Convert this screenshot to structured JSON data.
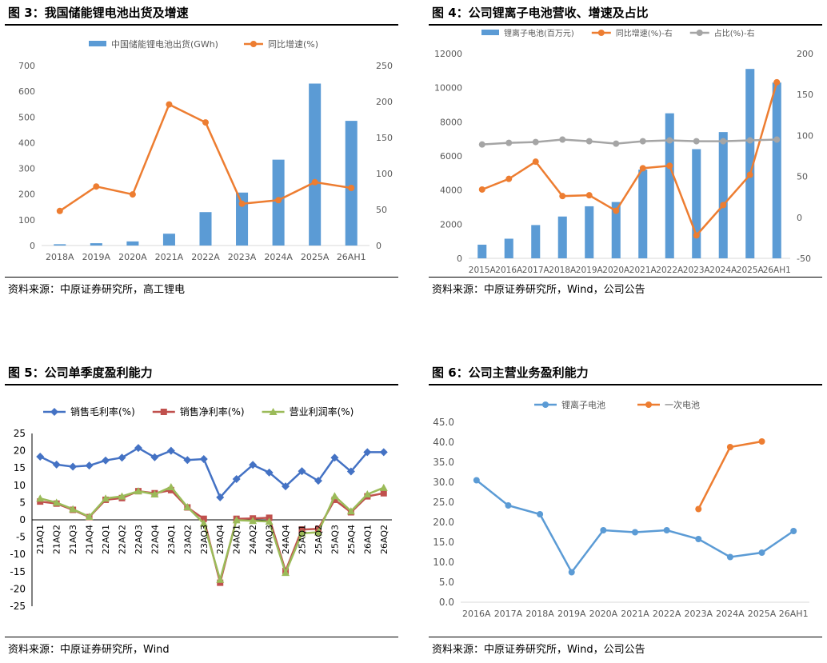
{
  "panels": [
    {
      "title": "图 3：我国储能锂电池出货及增速",
      "source": "资料来源：中原证券研究所，高工锂电",
      "chart_data": {
        "type": "bar+line",
        "categories": [
          "2018A",
          "2019A",
          "2020A",
          "2021A",
          "2022A",
          "2023A",
          "2024A",
          "2025A",
          "26AH1"
        ],
        "series": [
          {
            "name": "中国储能锂电池出货(GWh)",
            "kind": "bar",
            "axis": "left",
            "color": "#5b9bd5",
            "values": [
              5,
              9,
              16,
              46,
              130,
              206,
              334,
              630,
              485
            ]
          },
          {
            "name": "同比增速(%)",
            "kind": "line",
            "axis": "right",
            "color": "#ed7d31",
            "values": [
              48,
              82,
              71,
              196,
              171,
              58,
              63,
              88,
              80
            ]
          }
        ],
        "yleft": {
          "min": 0,
          "max": 700,
          "step": 100
        },
        "yright": {
          "min": 0,
          "max": 250,
          "step": 50
        },
        "legend": "top"
      }
    },
    {
      "title": "图 4：公司锂离子电池营收、增速及占比",
      "source": "资料来源：中原证券研究所，Wind，公司公告",
      "chart_data": {
        "type": "bar+line",
        "categories": [
          "2015A",
          "2016A",
          "2017A",
          "2018A",
          "2019A",
          "2020A",
          "2021A",
          "2022A",
          "2023A",
          "2024A",
          "2025A",
          "26AH1"
        ],
        "series": [
          {
            "name": "锂离子电池(百万元)",
            "kind": "bar",
            "axis": "left",
            "color": "#5b9bd5",
            "values": [
              800,
              1150,
              1950,
              2450,
              3050,
              3300,
              5200,
              8500,
              6400,
              7400,
              11100,
              10300
            ]
          },
          {
            "name": "同比增速(%)-右",
            "kind": "line",
            "axis": "right",
            "color": "#ed7d31",
            "values": [
              34,
              47,
              68,
              26,
              27,
              8,
              60,
              63,
              -22,
              15,
              52,
              165
            ]
          },
          {
            "name": "占比(%)-右",
            "kind": "line",
            "axis": "right",
            "color": "#a5a5a5",
            "values": [
              89,
              91,
              92,
              95,
              93,
              90,
              93,
              94,
              93,
              93,
              94,
              95
            ]
          }
        ],
        "yleft": {
          "min": 0,
          "max": 12000,
          "step": 2000
        },
        "yright": {
          "min": -50,
          "max": 200,
          "step": 50
        },
        "legend": "top"
      }
    },
    {
      "title": "图 5：公司单季度盈利能力",
      "source": "资料来源：中原证券研究所，Wind",
      "chart_data": {
        "type": "line",
        "categories": [
          "21AQ1",
          "21AQ2",
          "21AQ3",
          "21AQ4",
          "22AQ1",
          "22AQ2",
          "22AQ3",
          "22AQ4",
          "23AQ1",
          "23AQ2",
          "23AQ3",
          "23AQ4",
          "24AQ1",
          "24AQ2",
          "24AQ3",
          "24AQ4",
          "25AQ1",
          "25AQ2",
          "25AQ3",
          "25AQ4",
          "26AQ1",
          "26AQ2"
        ],
        "series": [
          {
            "name": "销售毛利率(%)",
            "color": "#4472c4",
            "marker": "diamond",
            "values": [
              18.3,
              16.0,
              15.4,
              15.7,
              17.2,
              18.0,
              20.8,
              18.1,
              20.0,
              17.3,
              17.6,
              6.5,
              11.8,
              15.9,
              13.7,
              9.7,
              14.1,
              11.3,
              18.0,
              14.0,
              19.6,
              19.6
            ]
          },
          {
            "name": "销售净利率(%)",
            "color": "#c0504d",
            "marker": "square",
            "values": [
              5.3,
              4.7,
              2.9,
              0.8,
              5.8,
              6.3,
              8.3,
              7.7,
              8.6,
              3.6,
              0.3,
              -18.2,
              0.3,
              0.4,
              0.6,
              -14.8,
              -2.8,
              -2.6,
              5.8,
              2.2,
              6.8,
              7.7
            ]
          },
          {
            "name": "营业利润率(%)",
            "color": "#9bbb59",
            "marker": "triangle",
            "values": [
              6.2,
              5.0,
              3.1,
              0.9,
              6.2,
              6.8,
              8.3,
              7.4,
              9.5,
              3.7,
              -1.0,
              -17.3,
              -0.1,
              -0.3,
              -0.5,
              -15.3,
              -3.9,
              -3.6,
              6.9,
              2.5,
              7.4,
              9.3
            ]
          }
        ],
        "ylim": [
          -25,
          25
        ],
        "step": 5,
        "legend": "top"
      }
    },
    {
      "title": "图 6：公司主营业务盈利能力",
      "source": "资料来源：中原证券研究所，Wind，公司公告",
      "chart_data": {
        "type": "line",
        "categories": [
          "2016A",
          "2017A",
          "2018A",
          "2019A",
          "2020A",
          "2021A",
          "2022A",
          "2023A",
          "2024A",
          "2025A",
          "26AH1"
        ],
        "series": [
          {
            "name": "锂离子电池",
            "color": "#5b9bd5",
            "values": [
              30.5,
              24.2,
              22.0,
              7.5,
              18.0,
              17.5,
              18.0,
              15.8,
              11.3,
              12.4,
              17.8
            ]
          },
          {
            "name": "一次电池",
            "color": "#ed7d31",
            "values": [
              null,
              null,
              null,
              null,
              null,
              null,
              null,
              23.3,
              38.8,
              40.2,
              null
            ]
          }
        ],
        "ylim": [
          0,
          45
        ],
        "step": 5,
        "tick_decimals": 1,
        "legend": "top"
      }
    }
  ]
}
